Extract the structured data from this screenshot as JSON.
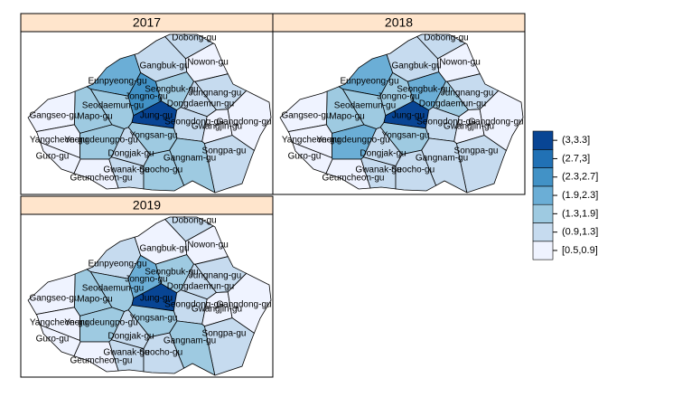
{
  "map_data": {
    "districts": [
      "Dobong-gu",
      "Nowon-gu",
      "Gangbuk-gu",
      "Eunpyeong-gu",
      "Seongbuk-gu",
      "Jungnang-gu",
      "Jongno-gu",
      "Seodaemun-gu",
      "Dongdaemun-gu",
      "Mapo-gu",
      "Jung-gu",
      "Gangseo-gu",
      "Seongdong-gu",
      "Gwangjin-gu",
      "Gangdong-gu",
      "Yongsan-gu",
      "Yangcheon-gu",
      "Yeongdeungpo-gu",
      "Songpa-gu",
      "Guro-gu",
      "Dongjak-gu",
      "Gangnam-gu",
      "Gwanak-gu",
      "Seocho-gu",
      "Geumcheon-gu"
    ],
    "panels": [
      {
        "title": "2017",
        "values": [
          1.1,
          0.7,
          1.1,
          2.1,
          1.6,
          1.1,
          2.5,
          1.7,
          1.1,
          1.7,
          3.1,
          0.7,
          1.1,
          0.7,
          0.7,
          1.6,
          0.7,
          1.7,
          1.1,
          0.7,
          1.1,
          1.6,
          1.1,
          1.6,
          0.7
        ]
      },
      {
        "title": "2018",
        "values": [
          1.1,
          0.7,
          1.1,
          2.1,
          2.1,
          1.1,
          1.6,
          1.7,
          1.6,
          1.7,
          3.1,
          0.7,
          1.1,
          0.7,
          0.7,
          1.6,
          0.7,
          2.1,
          1.1,
          0.7,
          1.1,
          1.1,
          1.1,
          1.1,
          0.7
        ]
      },
      {
        "title": "2019",
        "values": [
          1.1,
          0.7,
          0.7,
          1.1,
          1.6,
          1.1,
          2.1,
          1.6,
          1.1,
          1.6,
          3.1,
          0.7,
          1.1,
          0.7,
          0.7,
          1.6,
          0.7,
          1.6,
          1.1,
          0.7,
          1.1,
          1.6,
          1.1,
          1.1,
          0.7
        ]
      }
    ],
    "breaks": [
      0.5,
      0.9,
      1.3,
      1.9,
      2.3,
      2.7,
      3,
      3.3
    ],
    "legend": [
      {
        "label": "[0.5,0.9]",
        "color": "#eff3ff"
      },
      {
        "label": "(0.9,1.3]",
        "color": "#c6dbef"
      },
      {
        "label": "(1.3,1.9]",
        "color": "#9ecae1"
      },
      {
        "label": "(1.9,2.3]",
        "color": "#6baed6"
      },
      {
        "label": "(2.3,2.7]",
        "color": "#4292c6"
      },
      {
        "label": "(2.7,3]",
        "color": "#2171b5"
      },
      {
        "label": "(3,3.3]",
        "color": "#084594"
      }
    ]
  }
}
